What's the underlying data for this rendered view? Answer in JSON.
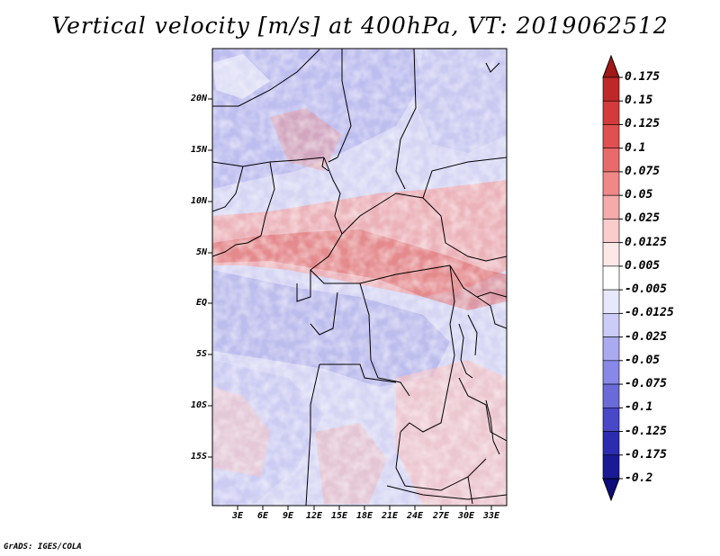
{
  "title": "Vertical velocity [m/s] at 400hPa, VT: 2019062512",
  "credit": "GrADS: IGES/COLA",
  "lat_labels": [
    "20N",
    "15N",
    "10N",
    "5N",
    "EQ",
    "5S",
    "10S",
    "15S"
  ],
  "lon_labels": [
    "3E",
    "6E",
    "9E",
    "12E",
    "15E",
    "18E",
    "21E",
    "24E",
    "27E",
    "30E",
    "33E"
  ],
  "colorbar": {
    "labels": [
      "0.175",
      "0.15",
      "0.125",
      "0.1",
      "0.075",
      "0.05",
      "0.025",
      "0.0125",
      "0.005",
      "-0.005",
      "-0.0125",
      "-0.025",
      "-0.05",
      "-0.075",
      "-0.1",
      "-0.125",
      "-0.175",
      "-0.2"
    ],
    "colors": [
      "#a01818",
      "#be2828",
      "#d43a3a",
      "#e05050",
      "#e96a6a",
      "#f08888",
      "#f6aaaa",
      "#fbcccc",
      "#fde8e8",
      "#ffffff",
      "#e8e8fc",
      "#ccccf8",
      "#aaaaf0",
      "#8888e8",
      "#6a6ad8",
      "#4848c8",
      "#2c2cb0",
      "#1a1a96",
      "#0c0c7a"
    ]
  }
}
